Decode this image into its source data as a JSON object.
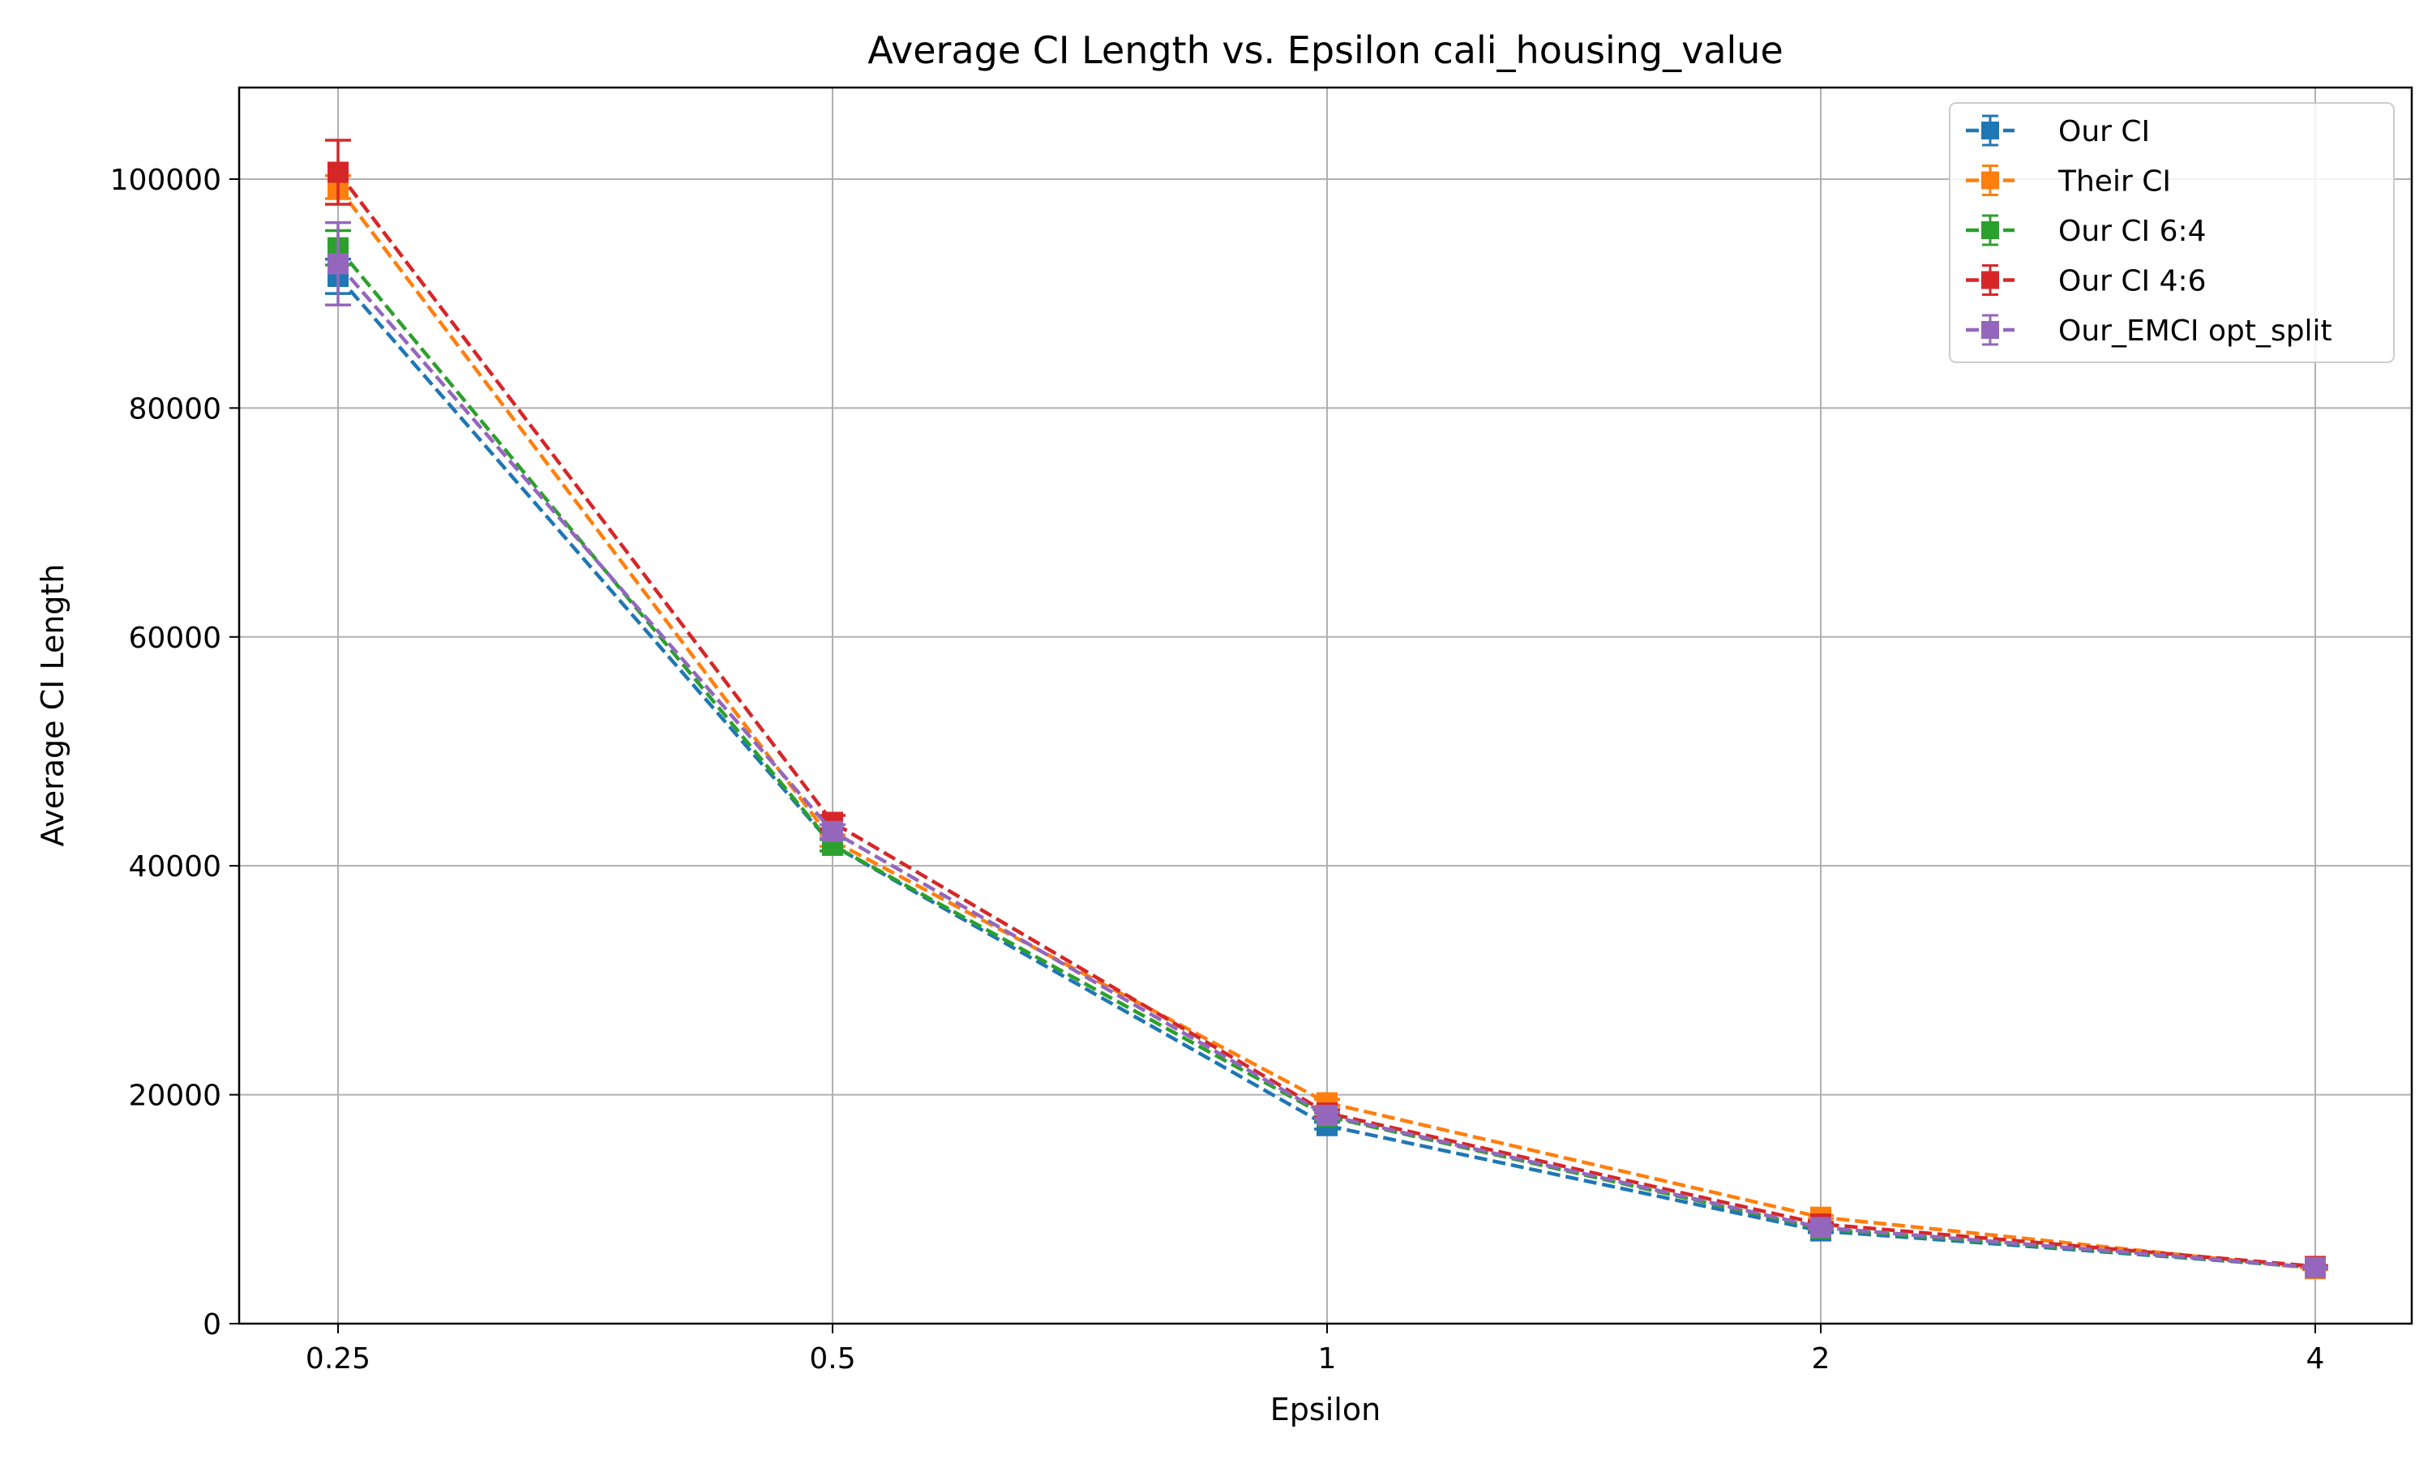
{
  "chart_data": {
    "type": "line",
    "title": "Average CI Length vs. Epsilon cali_housing_value",
    "xlabel": "Epsilon",
    "ylabel": "Average CI Length",
    "x": [
      "0.25",
      "0.5",
      "1",
      "2",
      "4"
    ],
    "x_scale": "categorical",
    "ylim": [
      0,
      108000
    ],
    "y_ticks": [
      0,
      20000,
      40000,
      60000,
      80000,
      100000
    ],
    "grid": true,
    "legend_position": "upper right",
    "line_style": "dashed",
    "marker": "square",
    "error_bars": true,
    "series": [
      {
        "name": "Our CI",
        "color": "#1f77b4",
        "values": [
          91500,
          41800,
          17300,
          8100,
          4900
        ],
        "errors": [
          1500,
          500,
          300,
          150,
          80
        ]
      },
      {
        "name": "Their CI",
        "color": "#ff7f0e",
        "values": [
          99300,
          42200,
          19300,
          9300,
          4800
        ],
        "errors": [
          1000,
          500,
          300,
          150,
          80
        ]
      },
      {
        "name": "Our CI 6:4",
        "color": "#2ca02c",
        "values": [
          94000,
          41800,
          18100,
          8300,
          4900
        ],
        "errors": [
          1500,
          500,
          300,
          150,
          80
        ]
      },
      {
        "name": "Our CI 4:6",
        "color": "#d62728",
        "values": [
          100600,
          43800,
          18400,
          8700,
          5000
        ],
        "errors": [
          2800,
          600,
          300,
          150,
          80
        ]
      },
      {
        "name": "Our_EMCI opt_split",
        "color": "#9467bd",
        "values": [
          92600,
          43000,
          18200,
          8400,
          4900
        ],
        "errors": [
          3600,
          600,
          300,
          150,
          80
        ]
      }
    ]
  }
}
